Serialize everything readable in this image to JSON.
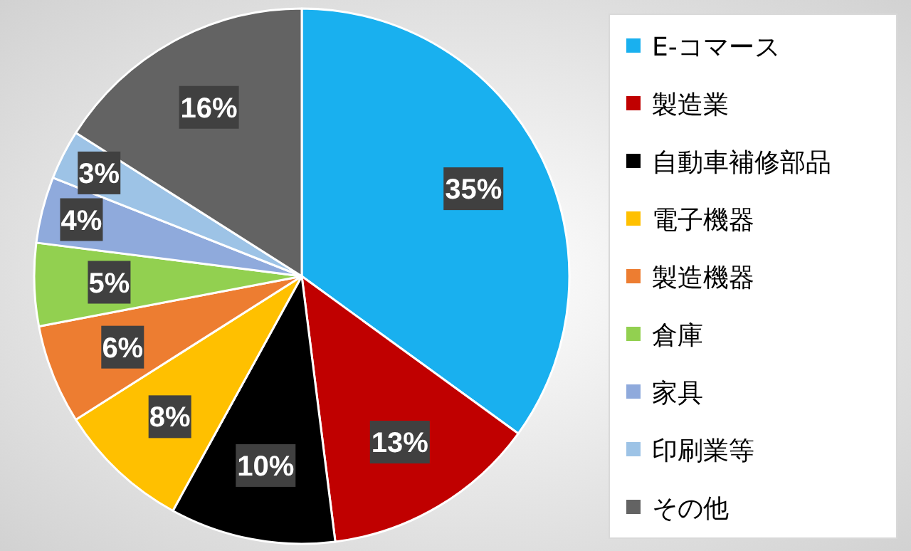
{
  "chart_data": {
    "type": "pie",
    "categories": [
      "E-コマース",
      "製造業",
      "自動車補修部品",
      "電子機器",
      "製造機器",
      "倉庫",
      "家具",
      "印刷業等",
      "その他"
    ],
    "values": [
      35,
      13,
      10,
      8,
      6,
      5,
      4,
      3,
      16
    ],
    "colors": [
      "#19b0ef",
      "#c00000",
      "#000000",
      "#ffc000",
      "#ed7d31",
      "#92d050",
      "#8faadc",
      "#9dc3e6",
      "#636363"
    ],
    "value_labels": [
      "35%",
      "13%",
      "10%",
      "8%",
      "6%",
      "5%",
      "4%",
      "3%",
      "16%"
    ],
    "legend": "right"
  }
}
